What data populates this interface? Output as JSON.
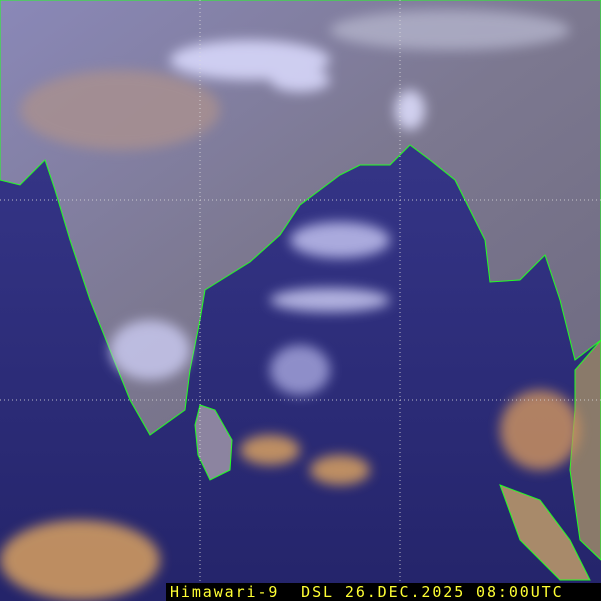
{
  "image": {
    "caption": "Himawari-9  DSL 26.DEC.2025 08:00UTC",
    "colors": {
      "ocean": "#2a2a78",
      "land": "#7a7a9a",
      "coastline": "#22ff22",
      "grid": "#dddddd",
      "caption_text": "#ffff33",
      "caption_bg": "#000000"
    }
  }
}
